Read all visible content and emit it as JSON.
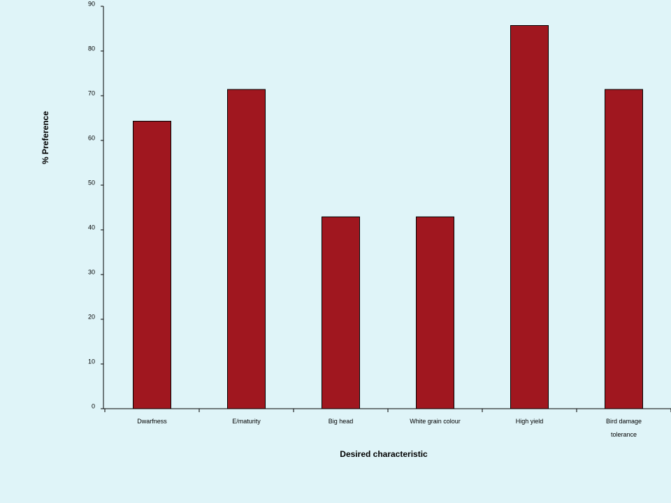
{
  "chart_data": {
    "type": "bar",
    "x_label": "Desired characteristic",
    "y_label": "% Preference",
    "categories": [
      "Dwarfness",
      "E/maturity",
      "Big head",
      "White grain colour",
      "High yield",
      "Bird damage tolerance"
    ],
    "values": [
      64.3,
      71.4,
      42.9,
      42.9,
      85.7,
      71.4
    ],
    "color": "#a0171f",
    "ylim": [
      0,
      90
    ],
    "yticks": [
      0,
      10,
      20,
      30,
      40,
      50,
      60,
      70,
      80,
      90
    ],
    "grid": false
  }
}
